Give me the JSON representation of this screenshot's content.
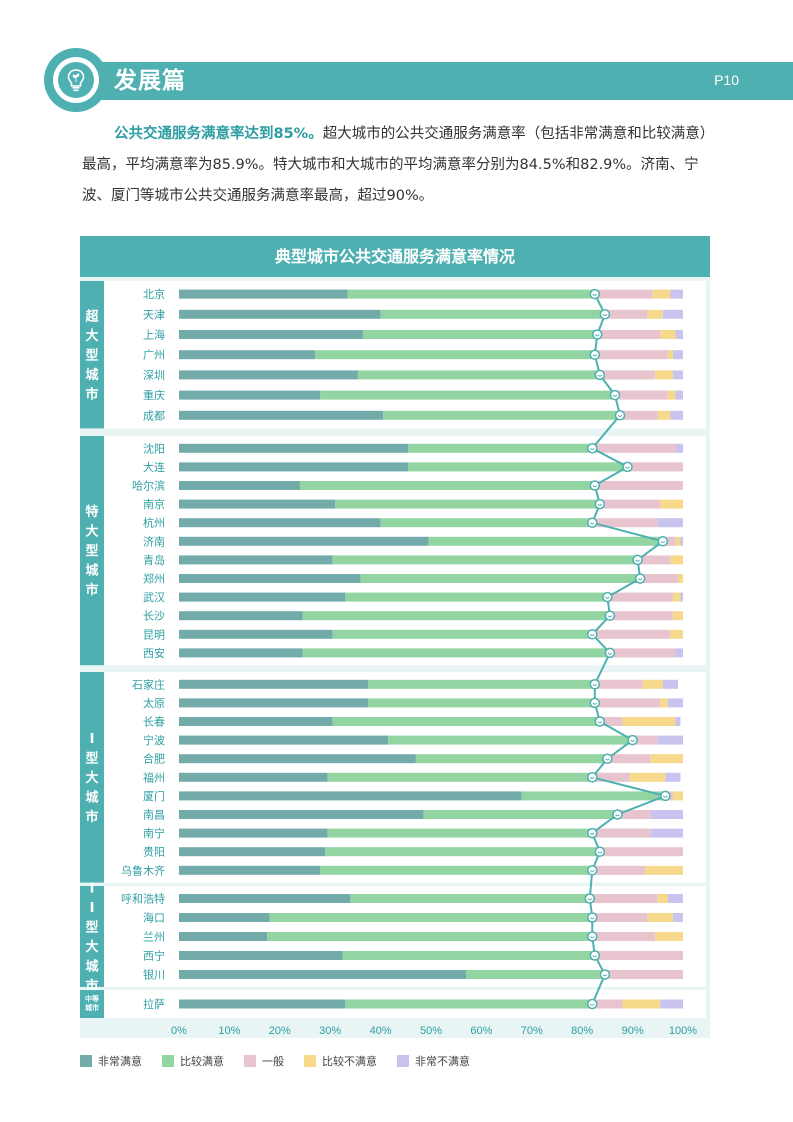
{
  "header": {
    "section_title": "发展篇",
    "page_number": "P10"
  },
  "intro": {
    "highlight": "公共交通服务满意率达到85%。",
    "body": "超大城市的公共交通服务满意率（包括非常满意和比较满意）最高，平均满意率为85.9%。特大城市和大城市的平均满意率分别为84.5%和82.9%。济南、宁波、厦门等城市公共交通服务满意率最高，超过90%。"
  },
  "colors": {
    "accent": "#4fb0b1",
    "very_satisfied": "#73abab",
    "satisfied": "#92d4a2",
    "neutral": "#e8c4cf",
    "dissatisfied": "#f6d98a",
    "very_dissatisfied": "#c9c3ef"
  },
  "chart_data": {
    "type": "bar",
    "stacked": true,
    "orientation": "horizontal",
    "title": "典型城市公共交通服务满意率情况",
    "xlim": [
      0,
      100
    ],
    "x_ticks": [
      "0%",
      "10%",
      "20%",
      "30%",
      "40%",
      "50%",
      "60%",
      "70%",
      "80%",
      "90%",
      "100%"
    ],
    "legend_position": "bottom-left",
    "series_names": [
      "非常满意",
      "比较满意",
      "一般",
      "比较不满意",
      "非常不满意"
    ],
    "groups": [
      {
        "label": "超大型城市",
        "cities": [
          {
            "name": "北京",
            "values": [
              33.5,
              49.0,
              11.5,
              3.5,
              2.5
            ]
          },
          {
            "name": "天津",
            "values": [
              40.0,
              44.5,
              8.5,
              3.0,
              4.0
            ]
          },
          {
            "name": "上海",
            "values": [
              36.5,
              46.5,
              12.5,
              3.0,
              1.5
            ]
          },
          {
            "name": "广州",
            "values": [
              27.0,
              55.5,
              14.5,
              1.0,
              2.0
            ]
          },
          {
            "name": "深圳",
            "values": [
              35.5,
              48.0,
              11.0,
              3.5,
              2.0
            ]
          },
          {
            "name": "重庆",
            "values": [
              28.0,
              58.5,
              10.5,
              1.5,
              1.5
            ]
          },
          {
            "name": "成都",
            "values": [
              40.5,
              47.0,
              7.5,
              2.5,
              2.5
            ]
          }
        ]
      },
      {
        "label": "特大型城市",
        "cities": [
          {
            "name": "沈阳",
            "values": [
              45.5,
              36.5,
              16.5,
              0,
              1.5
            ]
          },
          {
            "name": "大连",
            "values": [
              45.5,
              43.5,
              11.0,
              0,
              0
            ]
          },
          {
            "name": "哈尔滨",
            "values": [
              24.0,
              58.5,
              17.5,
              0,
              0
            ]
          },
          {
            "name": "南京",
            "values": [
              31.0,
              52.5,
              12.0,
              4.5,
              0
            ]
          },
          {
            "name": "杭州",
            "values": [
              40.0,
              42.0,
              13.0,
              0,
              5.0
            ]
          },
          {
            "name": "济南",
            "values": [
              49.5,
              46.5,
              2.5,
              1.0,
              0.5
            ]
          },
          {
            "name": "青岛",
            "values": [
              30.5,
              60.5,
              6.5,
              2.5,
              0
            ]
          },
          {
            "name": "郑州",
            "values": [
              36.0,
              55.5,
              7.5,
              1.0,
              0
            ]
          },
          {
            "name": "武汉",
            "values": [
              33.0,
              52.0,
              13.0,
              1.5,
              0.5
            ]
          },
          {
            "name": "长沙",
            "values": [
              24.5,
              61.0,
              12.5,
              2.0,
              0
            ]
          },
          {
            "name": "昆明",
            "values": [
              30.5,
              51.5,
              15.5,
              2.5,
              0
            ]
          },
          {
            "name": "西安",
            "values": [
              24.5,
              61.0,
              13.0,
              0,
              1.5
            ]
          }
        ]
      },
      {
        "label": "I型大城市",
        "cities": [
          {
            "name": "石家庄",
            "values": [
              37.5,
              45.0,
              9.5,
              4.0,
              3.0
            ]
          },
          {
            "name": "太原",
            "values": [
              37.5,
              45.0,
              13.0,
              1.5,
              3.0
            ]
          },
          {
            "name": "长春",
            "values": [
              30.5,
              53.0,
              4.5,
              10.5,
              1.0
            ]
          },
          {
            "name": "宁波",
            "values": [
              41.5,
              48.5,
              5.0,
              0,
              5.0
            ]
          },
          {
            "name": "合肥",
            "values": [
              47.0,
              38.0,
              8.5,
              6.5,
              0
            ]
          },
          {
            "name": "福州",
            "values": [
              29.5,
              52.5,
              7.5,
              7.0,
              3.0
            ]
          },
          {
            "name": "厦门",
            "values": [
              68.0,
              28.5,
              1.5,
              2.0,
              0
            ]
          },
          {
            "name": "南昌",
            "values": [
              48.5,
              38.5,
              6.5,
              0,
              6.5
            ]
          },
          {
            "name": "南宁",
            "values": [
              29.5,
              52.5,
              11.5,
              0,
              6.5
            ]
          },
          {
            "name": "贵阳",
            "values": [
              29.0,
              54.5,
              16.5,
              0,
              0
            ]
          },
          {
            "name": "乌鲁木齐",
            "values": [
              28.0,
              54.0,
              10.5,
              7.5,
              0
            ]
          }
        ]
      },
      {
        "label": "II型大城市",
        "cities": [
          {
            "name": "呼和浩特",
            "values": [
              34.0,
              47.5,
              13.5,
              2.0,
              3.0
            ]
          },
          {
            "name": "海口",
            "values": [
              18.0,
              64.0,
              11.0,
              5.0,
              2.0
            ]
          },
          {
            "name": "兰州",
            "values": [
              17.5,
              64.5,
              12.5,
              5.5,
              0
            ]
          },
          {
            "name": "西宁",
            "values": [
              32.5,
              50.0,
              17.5,
              0,
              0
            ]
          },
          {
            "name": "银川",
            "values": [
              57.0,
              27.5,
              15.5,
              0,
              0
            ]
          }
        ]
      },
      {
        "label": "中等城市",
        "cities": [
          {
            "name": "拉萨",
            "values": [
              33.0,
              49.0,
              6.0,
              7.5,
              4.5
            ]
          }
        ]
      }
    ]
  }
}
